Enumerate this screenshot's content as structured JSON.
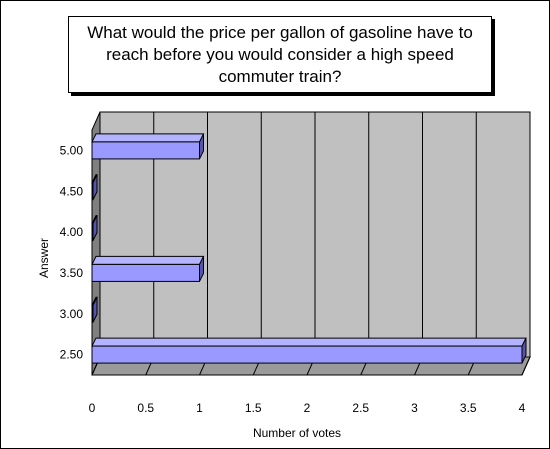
{
  "chart_data": {
    "type": "bar",
    "orientation": "horizontal",
    "title": "What would the price per gallon of gasoline have to reach before you would consider a high speed commuter train?",
    "xlabel": "Number of votes",
    "ylabel": "Answer",
    "categories": [
      "2.50",
      "3.00",
      "3.50",
      "4.00",
      "4.50",
      "5.00"
    ],
    "values": [
      4,
      0,
      1,
      0,
      0,
      1
    ],
    "xlim": [
      0,
      4
    ],
    "xticks": [
      "0",
      "0.5",
      "1",
      "1.5",
      "2",
      "2.5",
      "3",
      "3.5",
      "4"
    ],
    "grid": true,
    "legend": "none",
    "colors": {
      "bar_front": "#9999ff",
      "bar_top": "#b3b3ff",
      "bar_side": "#5555aa",
      "plot_back": "#c0c0c0",
      "plot_floor": "#9a9a9a",
      "plot_left": "#808080"
    }
  }
}
